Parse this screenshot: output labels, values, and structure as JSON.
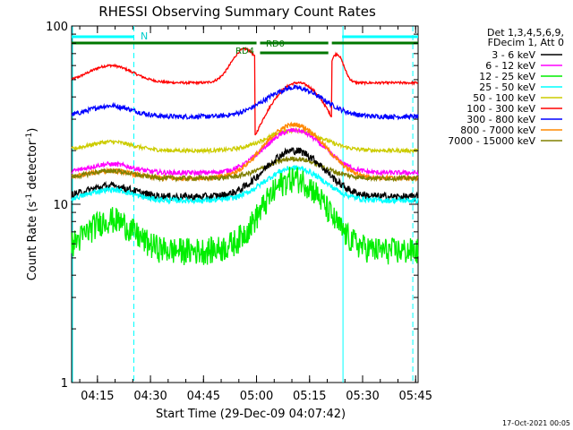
{
  "chart_data": {
    "type": "line",
    "title": "RHESSI Observing Summary Count Rates",
    "xlabel": "Start Time (29-Dec-09 04:07:42)",
    "ylabel": "Count Rate (s⁻¹ detector⁻¹)",
    "ylabel_main": "Count Rate (s",
    "ylabel_sup1": "-1",
    "ylabel_mid": " detector",
    "ylabel_sup2": "-1",
    "ylabel_end": ")",
    "y_scale": "log",
    "ylim": [
      1,
      100
    ],
    "xlim_minutes": [
      0,
      98
    ],
    "x_ticks": [
      {
        "label": "04:15",
        "minute": 7.3
      },
      {
        "label": "04:30",
        "minute": 22.3
      },
      {
        "label": "04:45",
        "minute": 37.3
      },
      {
        "label": "05:00",
        "minute": 52.3
      },
      {
        "label": "05:15",
        "minute": 67.3
      },
      {
        "label": "05:30",
        "minute": 82.3
      },
      {
        "label": "05:45",
        "minute": 97.3
      }
    ],
    "y_ticks": [
      {
        "label": "1",
        "value": 1
      },
      {
        "label": "10",
        "value": 10
      },
      {
        "label": "100",
        "value": 100
      }
    ],
    "legend_header": [
      "Det 1,3,4,5,6,9,",
      "FDecim 1, Att 0"
    ],
    "legend_position": "top-right",
    "series": [
      {
        "name": "3 - 6 keV",
        "color": "#000000",
        "base": 11,
        "peak": 20,
        "noise": 0.05,
        "cut": false,
        "preBump": 1.15
      },
      {
        "name": "6 - 12 keV",
        "color": "#ff00ff",
        "base": 15,
        "peak": 26,
        "noise": 0.03,
        "cut": false,
        "preBump": 1.12
      },
      {
        "name": "12 - 25 keV",
        "color": "#00ee00",
        "base": 5.5,
        "peak": 14,
        "noise": 0.07,
        "cut": false,
        "preBump": 1.5
      },
      {
        "name": "25 - 50 keV",
        "color": "#00ffff",
        "base": 10.5,
        "peak": 16,
        "noise": 0.035,
        "cut": false,
        "preBump": 1.15
      },
      {
        "name": "50 - 100 keV",
        "color": "#cccc00",
        "base": 20,
        "peak": 26,
        "noise": 0.025,
        "cut": false,
        "preBump": 1.12
      },
      {
        "name": "100 - 300 keV",
        "color": "#ff0000",
        "base": 48,
        "peak": 40,
        "noise": 0.015,
        "cut": true,
        "preBump": 1.25
      },
      {
        "name": "300 - 800 keV",
        "color": "#0000ff",
        "base": 31,
        "peak": 45,
        "noise": 0.03,
        "cut": false,
        "preBump": 1.15
      },
      {
        "name": "800 - 7000 keV",
        "color": "#ff8800",
        "base": 14,
        "peak": 28,
        "noise": 0.03,
        "cut": false,
        "preBump": 1.1
      },
      {
        "name": "7000 - 15000 keV",
        "color": "#808000",
        "base": 14,
        "peak": 18,
        "noise": 0.03,
        "cut": false,
        "preBump": 1.1
      }
    ],
    "annotations": {
      "night_label": "N",
      "rd4_label": "RD4",
      "rd0_label": "RD0",
      "night_bars_minutes": [
        [
          0,
          17.6
        ],
        [
          76.5,
          98
        ]
      ],
      "attenuator_bars_minutes": [
        [
          0,
          52.3
        ],
        [
          53.3,
          72.6
        ],
        [
          73.6,
          98
        ]
      ],
      "rd0_bar_minutes": [
        53.3,
        72.6
      ],
      "night_lines_minutes": [
        0,
        76.5
      ],
      "dash_lines_minutes": [
        17.6,
        96.5
      ]
    }
  },
  "footer_date": "17-Oct-2021 00:05"
}
